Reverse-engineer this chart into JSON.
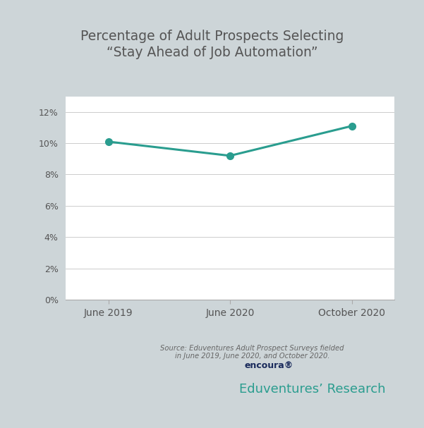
{
  "title_line1": "Percentage of Adult Prospects Selecting",
  "title_line2": "“Stay Ahead of Job Automation”",
  "x_labels": [
    "June 2019",
    "June 2020",
    "October 2020"
  ],
  "y_values": [
    0.101,
    0.092,
    0.111
  ],
  "line_color": "#2a9d8f",
  "marker_color": "#2a9d8f",
  "marker_size": 7,
  "line_width": 2.2,
  "ylim": [
    0,
    0.13
  ],
  "yticks": [
    0,
    0.02,
    0.04,
    0.06,
    0.08,
    0.1,
    0.12
  ],
  "ytick_labels": [
    "0%",
    "2%",
    "4%",
    "6%",
    "8%",
    "10%",
    "12%"
  ],
  "source_text": "Source: Eduventures Adult Prospect Surveys fielded\nin June 2019, June 2020, and October 2020.",
  "bg_outer": "#cdd5d8",
  "bg_plot": "#ffffff",
  "title_color": "#555555",
  "tick_label_color": "#555555",
  "source_color": "#666666",
  "grid_color": "#cccccc",
  "encoura_text": "encoura®",
  "eduventures_text": "Eduventures’ Research",
  "encoura_color": "#1a2b5c",
  "eduventures_color": "#2a9d8f",
  "bottom_spine_color": "#aaaaaa",
  "tick_color": "#aaaaaa"
}
